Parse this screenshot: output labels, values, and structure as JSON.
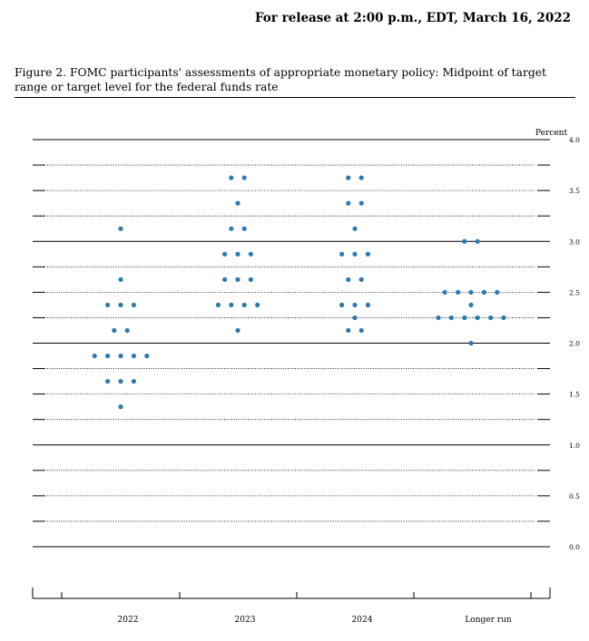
{
  "release_line": "For release at 2:00 p.m., EDT, March 16, 2022",
  "figure_caption": "Figure 2.  FOMC participants' assessments of appropriate monetary policy: Midpoint of target range or target level for the federal funds rate",
  "chart_data": {
    "type": "scatter",
    "title": "",
    "ylabel": "Percent",
    "ylim": [
      0.0,
      4.0
    ],
    "ytick_labels": [
      "0.0",
      "0.5",
      "1.0",
      "1.5",
      "2.0",
      "2.5",
      "3.0",
      "3.5",
      "4.0"
    ],
    "categories": [
      "2022",
      "2023",
      "2024",
      "Longer run"
    ],
    "grid": "dotted lines every 0.25; solid lines at whole percents",
    "series": [
      {
        "category": "2022",
        "points": [
          {
            "y": 3.125,
            "count": 1
          },
          {
            "y": 2.625,
            "count": 1
          },
          {
            "y": 2.375,
            "count": 3
          },
          {
            "y": 2.125,
            "count": 2
          },
          {
            "y": 1.875,
            "count": 5
          },
          {
            "y": 1.625,
            "count": 3
          },
          {
            "y": 1.375,
            "count": 1
          }
        ]
      },
      {
        "category": "2023",
        "points": [
          {
            "y": 3.625,
            "count": 2
          },
          {
            "y": 3.375,
            "count": 1
          },
          {
            "y": 3.125,
            "count": 2
          },
          {
            "y": 2.875,
            "count": 3
          },
          {
            "y": 2.625,
            "count": 3
          },
          {
            "y": 2.375,
            "count": 4
          },
          {
            "y": 2.125,
            "count": 1
          }
        ]
      },
      {
        "category": "2024",
        "points": [
          {
            "y": 3.625,
            "count": 2
          },
          {
            "y": 3.375,
            "count": 2
          },
          {
            "y": 3.125,
            "count": 1
          },
          {
            "y": 2.875,
            "count": 3
          },
          {
            "y": 2.625,
            "count": 2
          },
          {
            "y": 2.375,
            "count": 3
          },
          {
            "y": 2.25,
            "count": 1
          },
          {
            "y": 2.125,
            "count": 2
          }
        ]
      },
      {
        "category": "Longer run",
        "points": [
          {
            "y": 3.0,
            "count": 2
          },
          {
            "y": 2.5,
            "count": 5
          },
          {
            "y": 2.375,
            "count": 1
          },
          {
            "y": 2.25,
            "count": 6
          },
          {
            "y": 2.0,
            "count": 1
          }
        ]
      }
    ],
    "colors": {
      "dot": "#2a7ab0",
      "grid": "#000000"
    }
  }
}
